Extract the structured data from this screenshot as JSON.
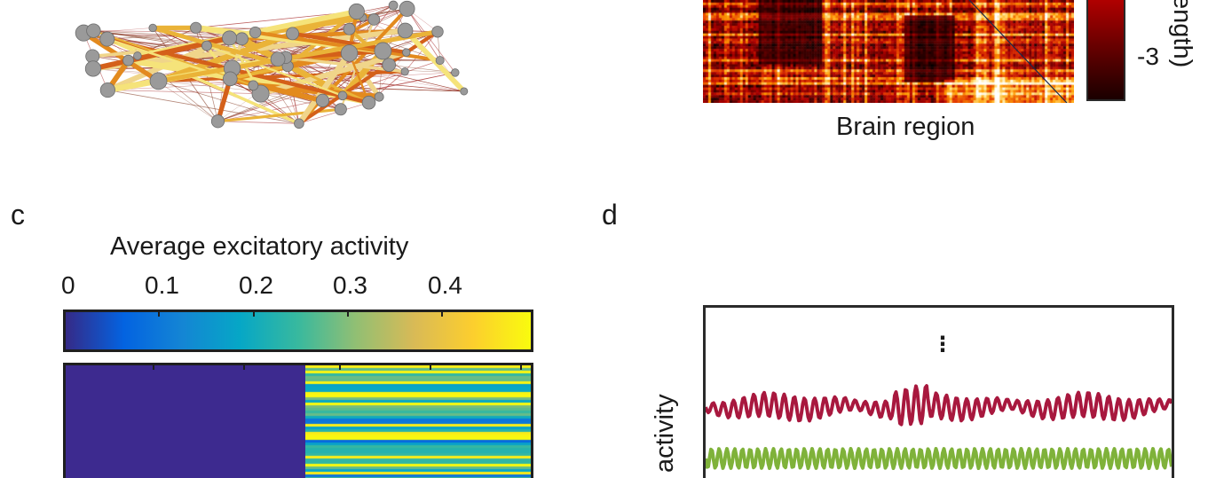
{
  "panels": {
    "a": {
      "visible_label": ""
    },
    "b": {
      "xlabel": "Brain region",
      "colorbar_tick": "-3",
      "colorbar_label_fragment": "ength)",
      "colormap": [
        "#000000",
        "#5a0000",
        "#b00000",
        "#e33a00",
        "#ff9d00",
        "#ffe58a",
        "#ffffff"
      ]
    },
    "c": {
      "letter": "c",
      "colorbar_title": "Average excitatory activity",
      "colorbar_ticks": [
        "0",
        "0.1",
        "0.2",
        "0.3",
        "0.4"
      ],
      "colormap": [
        "#352a87",
        "#0363e1",
        "#1485d4",
        "#06a7c6",
        "#38b99e",
        "#92bf73",
        "#d9ba56",
        "#fcce2e",
        "#f9fb0e"
      ],
      "heatmap_left_fill": "#3d2a8f"
    },
    "d": {
      "letter": "d",
      "ylabel_fragment": "activity",
      "ellipsis": "⋮",
      "series_colors": [
        "#a8183e",
        "#7fb23a"
      ]
    }
  },
  "chart_data": [
    {
      "type": "heatmap",
      "panel": "b",
      "xlabel": "Brain region",
      "colorbar_ticks": [
        "-3"
      ]
    },
    {
      "type": "heatmap",
      "panel": "c",
      "colorbar_title": "Average excitatory activity",
      "colorbar_range": [
        0,
        0.48
      ],
      "colorbar_ticks": [
        0,
        0.1,
        0.2,
        0.3,
        0.4
      ],
      "left_block_value": 0.0,
      "right_block_value_range": [
        0.15,
        0.48
      ]
    },
    {
      "type": "line",
      "panel": "d",
      "ylabel": "activity",
      "series": [
        {
          "color": "#a8183e",
          "pattern": "irregular oscillation"
        },
        {
          "color": "#7fb23a",
          "pattern": "regular oscillation"
        }
      ]
    }
  ]
}
